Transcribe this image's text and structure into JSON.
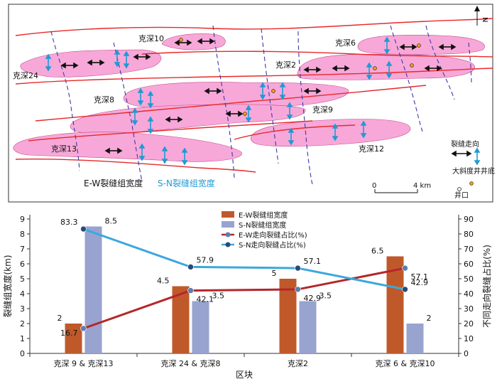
{
  "map": {
    "blocks": [
      "克深10",
      "克深6",
      "克深24",
      "克深2",
      "克深8",
      "克深9",
      "克深13",
      "克深12"
    ],
    "caption_ew": "E-W裂缝组宽度",
    "caption_sn": "S-N裂缝组宽度",
    "legend": {
      "fracture": "裂缝走向",
      "deviated_bottom": "大斜度井井底",
      "wellhead": "井口"
    },
    "scale": {
      "zero": "0",
      "end": "4 km"
    },
    "north": "N",
    "colors": {
      "block_fill": "#f7a8d8",
      "fault": "#e8292b",
      "dash": "#3a3aa8",
      "ew_arrow": "#111111",
      "sn_arrow": "#1f9ad6"
    }
  },
  "chart_data": {
    "type": "bar",
    "categories": [
      "克深 9 & 克深13",
      "克深 24 & 克深8",
      "克深2",
      "克深 6 & 克深10"
    ],
    "series": [
      {
        "name": "E-W裂缝组宽度",
        "kind": "bar",
        "axis": "left",
        "color": "#c0592a",
        "values": [
          2,
          4.5,
          5,
          6.5
        ],
        "labels": [
          "2",
          "4.5",
          "5",
          "6.5"
        ]
      },
      {
        "name": "S-N裂缝组宽度",
        "kind": "bar",
        "axis": "left",
        "color": "#98a3cf",
        "values": [
          8.5,
          3.5,
          3.5,
          2
        ],
        "labels": [
          "8.5",
          "3.5",
          "3.5",
          "2"
        ]
      },
      {
        "name": "E-W走向裂缝占比(%)",
        "kind": "line",
        "axis": "right",
        "color": "#b5262a",
        "values": [
          16.7,
          42.1,
          42.9,
          57.1
        ],
        "labels": [
          "16.7",
          "42.1",
          "42.9",
          "57.1"
        ]
      },
      {
        "name": "S-N走向裂缝占比(%)",
        "kind": "line",
        "axis": "right",
        "color": "#3ba8dc",
        "values": [
          83.3,
          57.9,
          57.1,
          42.9
        ],
        "labels": [
          "83.3",
          "57.9",
          "57.1",
          "42.9"
        ]
      }
    ],
    "xlabel": "区块",
    "ylabel": "裂缝组宽度(km)",
    "y2label": "不同走向裂缝占比(%)",
    "ylim": [
      0,
      9
    ],
    "y2lim": [
      0,
      90
    ],
    "yticks": [
      "0",
      "1",
      "2",
      "3",
      "4",
      "5",
      "6",
      "7",
      "8",
      "9"
    ],
    "y2ticks": [
      "0",
      "10",
      "20",
      "30",
      "40",
      "50",
      "60",
      "70",
      "80",
      "90"
    ],
    "legend_position": "top-center"
  }
}
